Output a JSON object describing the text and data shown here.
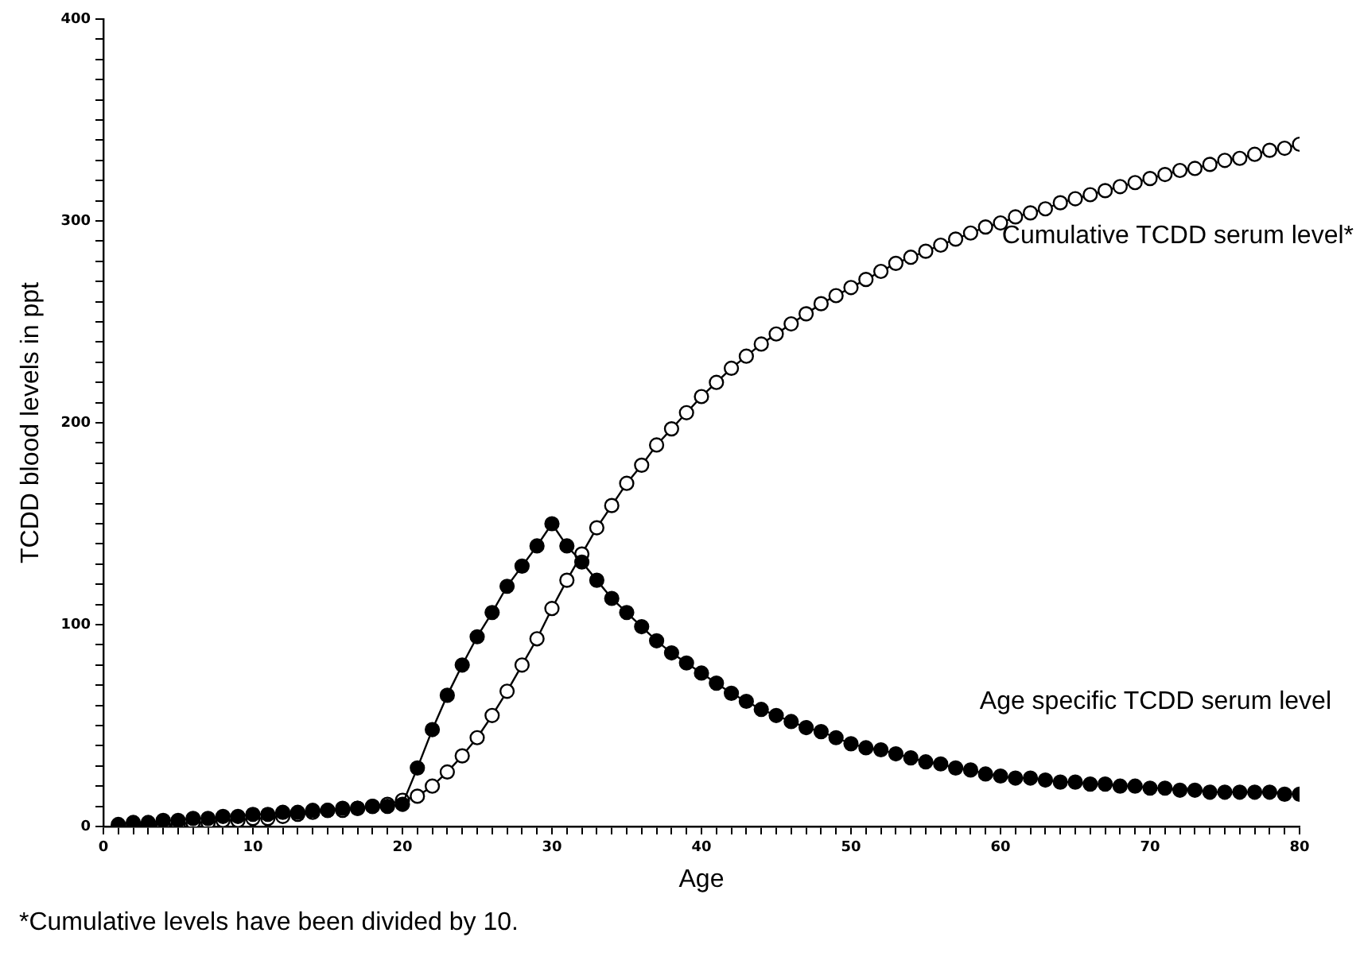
{
  "chart_data": {
    "type": "line",
    "xlabel": "Age",
    "ylabel": "TCDD blood levels in ppt",
    "annotations": [
      "*Cumulative levels have been divided by 10."
    ],
    "x": [
      1,
      2,
      3,
      4,
      5,
      6,
      7,
      8,
      9,
      10,
      11,
      12,
      13,
      14,
      15,
      16,
      17,
      18,
      19,
      20,
      21,
      22,
      23,
      24,
      25,
      26,
      27,
      28,
      29,
      30,
      31,
      32,
      33,
      34,
      35,
      36,
      37,
      38,
      39,
      40,
      41,
      42,
      43,
      44,
      45,
      46,
      47,
      48,
      49,
      50,
      51,
      52,
      53,
      54,
      55,
      56,
      57,
      58,
      59,
      60,
      61,
      62,
      63,
      64,
      65,
      66,
      67,
      68,
      69,
      70,
      71,
      72,
      73,
      74,
      75,
      76,
      77,
      78,
      79,
      80
    ],
    "series": [
      {
        "name": "Age specific TCDD serum level",
        "color": "#000000",
        "values": [
          1,
          2,
          2,
          3,
          3,
          4,
          4,
          5,
          5,
          6,
          6,
          7,
          7,
          8,
          8,
          9,
          9,
          10,
          10,
          11,
          29,
          48,
          65,
          80,
          94,
          106,
          119,
          129,
          139,
          150,
          139,
          131,
          122,
          113,
          106,
          99,
          92,
          86,
          81,
          76,
          71,
          66,
          62,
          58,
          55,
          52,
          49,
          47,
          44,
          41,
          39,
          38,
          36,
          34,
          32,
          31,
          29,
          28,
          26,
          25,
          24,
          24,
          23,
          22,
          22,
          21,
          21,
          20,
          20,
          19,
          19,
          18,
          18,
          17,
          17,
          17,
          17,
          17,
          16,
          16
        ]
      },
      {
        "name": "Cumulative TCDD serum level*",
        "color": "#000000",
        "values": [
          0,
          0,
          1,
          1,
          1,
          2,
          2,
          3,
          3,
          4,
          4,
          5,
          6,
          7,
          8,
          8,
          9,
          10,
          11,
          13,
          15,
          20,
          27,
          35,
          44,
          55,
          67,
          80,
          93,
          108,
          122,
          135,
          148,
          159,
          170,
          179,
          189,
          197,
          205,
          213,
          220,
          227,
          233,
          239,
          244,
          249,
          254,
          259,
          263,
          267,
          271,
          275,
          279,
          282,
          285,
          288,
          291,
          294,
          297,
          299,
          302,
          304,
          306,
          309,
          311,
          313,
          315,
          317,
          319,
          321,
          323,
          325,
          326,
          328,
          330,
          331,
          333,
          335,
          336,
          338
        ]
      }
    ],
    "xlim": [
      0,
      80
    ],
    "xticks": [
      0,
      {
        "value": 1,
        "label": null
      },
      {
        "value": 2,
        "label": null
      },
      {
        "value": 3,
        "label": null
      },
      {
        "value": 4,
        "label": null
      },
      {
        "value": 5,
        "label": null
      },
      {
        "value": 6,
        "label": null
      },
      {
        "value": 7,
        "label": null
      },
      {
        "value": 8,
        "label": null
      },
      {
        "value": 9,
        "label": null
      },
      10,
      {
        "value": 11,
        "label": null
      },
      {
        "value": 12,
        "label": null
      },
      {
        "value": 13,
        "label": null
      },
      {
        "value": 14,
        "label": null
      },
      {
        "value": 15,
        "label": null
      },
      {
        "value": 16,
        "label": null
      },
      {
        "value": 17,
        "label": null
      },
      {
        "value": 18,
        "label": null
      },
      {
        "value": 19,
        "label": null
      },
      20,
      {
        "value": 21,
        "label": null
      },
      {
        "value": 22,
        "label": null
      },
      {
        "value": 23,
        "label": null
      },
      {
        "value": 24,
        "label": null
      },
      {
        "value": 25,
        "label": null
      },
      {
        "value": 26,
        "label": null
      },
      {
        "value": 27,
        "label": null
      },
      {
        "value": 28,
        "label": null
      },
      {
        "value": 29,
        "label": null
      },
      30,
      {
        "value": 31,
        "label": null
      },
      {
        "value": 32,
        "label": null
      },
      {
        "value": 33,
        "label": null
      },
      {
        "value": 34,
        "label": null
      },
      {
        "value": 35,
        "label": null
      },
      {
        "value": 36,
        "label": null
      },
      {
        "value": 37,
        "label": null
      },
      {
        "value": 38,
        "label": null
      },
      {
        "value": 39,
        "label": null
      },
      40,
      {
        "value": 41,
        "label": null
      },
      {
        "value": 42,
        "label": null
      },
      {
        "value": 43,
        "label": null
      },
      {
        "value": 44,
        "label": null
      },
      {
        "value": 45,
        "label": null
      },
      {
        "value": 46,
        "label": null
      },
      {
        "value": 47,
        "label": null
      },
      {
        "value": 48,
        "label": null
      },
      {
        "value": 49,
        "label": null
      },
      50,
      {
        "value": 51,
        "label": null
      },
      {
        "value": 52,
        "label": null
      },
      {
        "value": 53,
        "label": null
      },
      {
        "value": 54,
        "label": null
      },
      {
        "value": 55,
        "label": null
      },
      {
        "value": 56,
        "label": null
      },
      {
        "value": 57,
        "label": null
      },
      {
        "value": 58,
        "label": null
      },
      {
        "value": 59,
        "label": null
      },
      60,
      {
        "value": 61,
        "label": null
      },
      {
        "value": 62,
        "label": null
      },
      {
        "value": 63,
        "label": null
      },
      {
        "value": 64,
        "label": null
      },
      {
        "value": 65,
        "label": null
      },
      {
        "value": 66,
        "label": null
      },
      {
        "value": 67,
        "label": null
      },
      {
        "value": 68,
        "label": null
      },
      {
        "value": 69,
        "label": null
      },
      70,
      {
        "value": 71,
        "label": null
      },
      {
        "value": 72,
        "label": null
      },
      {
        "value": 73,
        "label": null
      },
      {
        "value": 74,
        "label": null
      },
      {
        "value": 75,
        "label": null
      },
      {
        "value": 76,
        "label": null
      },
      {
        "value": 77,
        "label": null
      },
      {
        "value": 78,
        "label": null
      },
      {
        "value": 79,
        "label": null
      },
      80
    ],
    "ylim": [
      0,
      400
    ],
    "yticks": [
      0,
      {
        "value": 10,
        "label": null
      },
      {
        "value": 20,
        "label": null
      },
      {
        "value": 30,
        "label": null
      },
      {
        "value": 40,
        "label": null
      },
      {
        "value": 50,
        "label": null
      },
      {
        "value": 60,
        "label": null
      },
      {
        "value": 70,
        "label": null
      },
      {
        "value": 80,
        "label": null
      },
      {
        "value": 90,
        "label": null
      },
      100,
      {
        "value": 110,
        "label": null
      },
      {
        "value": 120,
        "label": null
      },
      {
        "value": 130,
        "label": null
      },
      {
        "value": 140,
        "label": null
      },
      {
        "value": 150,
        "label": null
      },
      {
        "value": 160,
        "label": null
      },
      {
        "value": 170,
        "label": null
      },
      {
        "value": 180,
        "label": null
      },
      {
        "value": 190,
        "label": null
      },
      200,
      {
        "value": 210,
        "label": null
      },
      {
        "value": 220,
        "label": null
      },
      {
        "value": 230,
        "label": null
      },
      {
        "value": 240,
        "label": null
      },
      {
        "value": 250,
        "label": null
      },
      {
        "value": 260,
        "label": null
      },
      {
        "value": 270,
        "label": null
      },
      {
        "value": 280,
        "label": null
      },
      {
        "value": 290,
        "label": null
      },
      300,
      {
        "value": 310,
        "label": null
      },
      {
        "value": 320,
        "label": null
      },
      {
        "value": 330,
        "label": null
      },
      {
        "value": 340,
        "label": null
      },
      {
        "value": 350,
        "label": null
      },
      {
        "value": 360,
        "label": null
      },
      {
        "value": 370,
        "label": null
      },
      {
        "value": 380,
        "label": null
      },
      {
        "value": 390,
        "label": null
      },
      400
    ],
    "grid": false,
    "legend": false,
    "marker": "circle",
    "line_style": "solid"
  }
}
